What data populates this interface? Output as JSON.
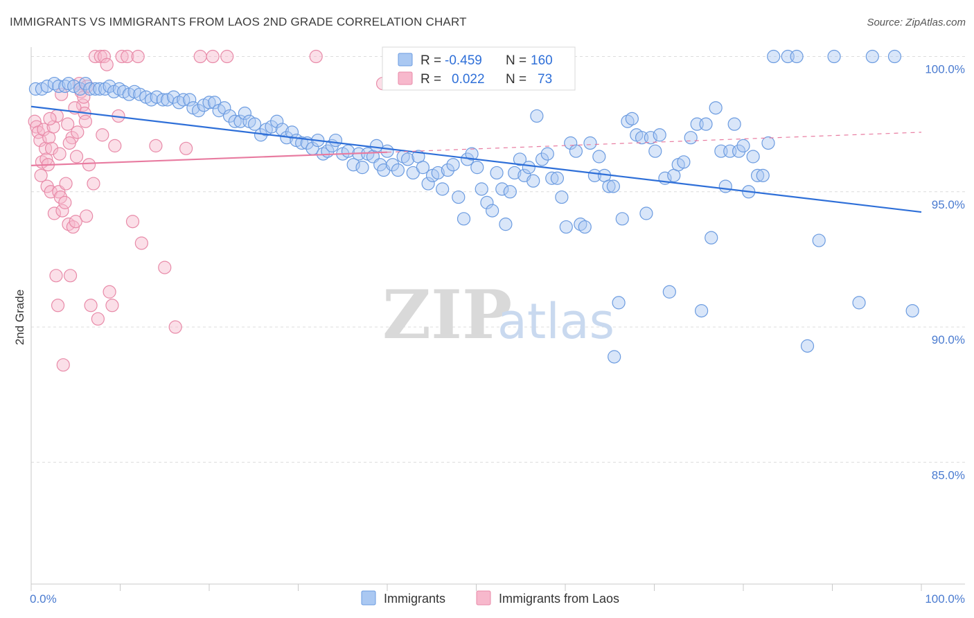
{
  "title": "IMMIGRANTS VS IMMIGRANTS FROM LAOS 2ND GRADE CORRELATION CHART",
  "source": "Source: ZipAtlas.com",
  "watermark": {
    "zip": "ZIP",
    "atlas": "atlas"
  },
  "legend": {
    "r_label": "R =",
    "n_label": "N =",
    "rows": [
      {
        "r": "-0.459",
        "n": "160",
        "color": "#aac8f2",
        "stroke": "#6b9be0"
      },
      {
        "r": "0.022",
        "n": "73",
        "color": "#f7b8cc",
        "stroke": "#e88aa8"
      }
    ]
  },
  "bottom_legend": [
    {
      "label": "Immigrants",
      "color": "#aac8f2",
      "stroke": "#6b9be0"
    },
    {
      "label": "Immigrants from Laos",
      "color": "#f7b8cc",
      "stroke": "#e88aa8"
    }
  ],
  "chart_data": {
    "type": "scatter",
    "title": "IMMIGRANTS VS IMMIGRANTS FROM LAOS 2ND GRADE CORRELATION CHART",
    "xlabel": "",
    "ylabel": "2nd Grade",
    "xlim": [
      0,
      100
    ],
    "ylim": [
      80.5,
      100.5
    ],
    "x_tick_labels": [
      "0.0%",
      "100.0%"
    ],
    "y_ticks": [
      100,
      95,
      90,
      85
    ],
    "y_tick_labels": [
      "100.0%",
      "95.0%",
      "90.0%",
      "85.0%"
    ],
    "grid": true,
    "legend_position": "top-center",
    "series": [
      {
        "name": "Immigrants",
        "color": "#6b9be0",
        "fill": "#aac8f2",
        "trend": {
          "x": [
            0,
            100
          ],
          "y": [
            98.15,
            94.25
          ],
          "color": "#2e6fd8",
          "dashed_from": null
        },
        "points": [
          [
            0.5,
            98.8
          ],
          [
            1.2,
            98.8
          ],
          [
            1.8,
            98.9
          ],
          [
            2.6,
            99.0
          ],
          [
            3.1,
            98.9
          ],
          [
            3.8,
            98.9
          ],
          [
            4.2,
            99.0
          ],
          [
            4.8,
            98.9
          ],
          [
            5.5,
            98.8
          ],
          [
            6.1,
            99.0
          ],
          [
            6.6,
            98.8
          ],
          [
            7.2,
            98.8
          ],
          [
            7.7,
            98.8
          ],
          [
            8.3,
            98.8
          ],
          [
            8.8,
            98.9
          ],
          [
            9.3,
            98.7
          ],
          [
            9.9,
            98.8
          ],
          [
            10.4,
            98.7
          ],
          [
            11.0,
            98.6
          ],
          [
            11.6,
            98.7
          ],
          [
            12.2,
            98.6
          ],
          [
            12.9,
            98.5
          ],
          [
            13.5,
            98.4
          ],
          [
            14.1,
            98.5
          ],
          [
            14.8,
            98.4
          ],
          [
            15.3,
            98.4
          ],
          [
            16.0,
            98.5
          ],
          [
            16.6,
            98.3
          ],
          [
            17.1,
            98.4
          ],
          [
            17.8,
            98.4
          ],
          [
            18.2,
            98.1
          ],
          [
            18.8,
            98.0
          ],
          [
            19.4,
            98.2
          ],
          [
            20.0,
            98.3
          ],
          [
            20.6,
            98.3
          ],
          [
            21.1,
            98.0
          ],
          [
            21.7,
            98.1
          ],
          [
            22.3,
            97.8
          ],
          [
            22.9,
            97.6
          ],
          [
            23.5,
            97.6
          ],
          [
            24.0,
            97.9
          ],
          [
            24.5,
            97.6
          ],
          [
            25.1,
            97.5
          ],
          [
            25.8,
            97.1
          ],
          [
            26.4,
            97.3
          ],
          [
            27.0,
            97.4
          ],
          [
            27.6,
            97.6
          ],
          [
            28.2,
            97.3
          ],
          [
            28.7,
            97.0
          ],
          [
            29.3,
            97.2
          ],
          [
            29.8,
            96.9
          ],
          [
            30.4,
            96.8
          ],
          [
            31.0,
            96.8
          ],
          [
            31.6,
            96.6
          ],
          [
            32.2,
            96.9
          ],
          [
            32.8,
            96.4
          ],
          [
            33.3,
            96.5
          ],
          [
            33.8,
            96.7
          ],
          [
            34.2,
            96.9
          ],
          [
            35.0,
            96.4
          ],
          [
            35.6,
            96.5
          ],
          [
            36.2,
            96.0
          ],
          [
            36.8,
            96.4
          ],
          [
            37.2,
            95.9
          ],
          [
            37.8,
            96.4
          ],
          [
            38.4,
            96.3
          ],
          [
            38.8,
            96.7
          ],
          [
            39.2,
            96.0
          ],
          [
            39.6,
            95.8
          ],
          [
            40.0,
            96.5
          ],
          [
            40.6,
            96.0
          ],
          [
            41.2,
            95.8
          ],
          [
            41.8,
            96.3
          ],
          [
            42.3,
            96.2
          ],
          [
            42.9,
            95.7
          ],
          [
            43.5,
            96.3
          ],
          [
            44.0,
            95.9
          ],
          [
            44.6,
            95.3
          ],
          [
            45.1,
            95.6
          ],
          [
            45.7,
            95.7
          ],
          [
            46.2,
            95.1
          ],
          [
            46.8,
            95.8
          ],
          [
            47.4,
            96.0
          ],
          [
            48.0,
            94.8
          ],
          [
            48.6,
            94.0
          ],
          [
            49.0,
            96.2
          ],
          [
            49.5,
            96.4
          ],
          [
            50.1,
            95.9
          ],
          [
            50.6,
            95.1
          ],
          [
            51.2,
            94.6
          ],
          [
            51.8,
            94.3
          ],
          [
            52.3,
            95.7
          ],
          [
            52.9,
            95.1
          ],
          [
            53.3,
            93.8
          ],
          [
            53.8,
            95.0
          ],
          [
            54.3,
            95.7
          ],
          [
            54.9,
            96.2
          ],
          [
            55.4,
            95.6
          ],
          [
            55.9,
            95.9
          ],
          [
            56.4,
            95.4
          ],
          [
            56.8,
            97.8
          ],
          [
            57.4,
            96.2
          ],
          [
            58.0,
            96.4
          ],
          [
            58.5,
            95.5
          ],
          [
            59.1,
            95.5
          ],
          [
            59.6,
            94.8
          ],
          [
            60.1,
            93.7
          ],
          [
            60.6,
            96.8
          ],
          [
            61.2,
            96.5
          ],
          [
            61.7,
            93.8
          ],
          [
            62.2,
            93.7
          ],
          [
            62.8,
            96.8
          ],
          [
            63.3,
            95.6
          ],
          [
            63.8,
            96.3
          ],
          [
            64.4,
            95.6
          ],
          [
            64.9,
            95.2
          ],
          [
            65.4,
            95.2
          ],
          [
            66.4,
            94.0
          ],
          [
            67.0,
            97.6
          ],
          [
            67.5,
            97.7
          ],
          [
            68.0,
            97.1
          ],
          [
            68.6,
            97.0
          ],
          [
            69.1,
            94.2
          ],
          [
            69.6,
            97.0
          ],
          [
            70.1,
            96.5
          ],
          [
            70.6,
            97.1
          ],
          [
            71.2,
            95.5
          ],
          [
            71.7,
            91.3
          ],
          [
            72.2,
            95.6
          ],
          [
            72.7,
            96.0
          ],
          [
            73.3,
            96.1
          ],
          [
            74.1,
            97.0
          ],
          [
            74.8,
            97.5
          ],
          [
            75.3,
            90.6
          ],
          [
            75.8,
            97.5
          ],
          [
            76.4,
            93.3
          ],
          [
            76.9,
            98.1
          ],
          [
            77.5,
            96.5
          ],
          [
            78.0,
            95.2
          ],
          [
            78.5,
            96.5
          ],
          [
            79.0,
            97.5
          ],
          [
            79.5,
            96.5
          ],
          [
            80.0,
            96.7
          ],
          [
            80.6,
            95.0
          ],
          [
            81.1,
            96.3
          ],
          [
            81.6,
            95.6
          ],
          [
            82.2,
            95.6
          ],
          [
            82.8,
            96.8
          ],
          [
            83.4,
            100.0
          ],
          [
            85.0,
            100.0
          ],
          [
            86.0,
            100.0
          ],
          [
            87.2,
            89.3
          ],
          [
            88.5,
            93.2
          ],
          [
            90.2,
            100.0
          ],
          [
            93.0,
            90.9
          ],
          [
            94.5,
            100.0
          ],
          [
            97.0,
            100.0
          ],
          [
            99.0,
            90.6
          ],
          [
            65.5,
            88.9
          ],
          [
            66.0,
            90.9
          ]
        ]
      },
      {
        "name": "Immigrants from Laos",
        "color": "#e88aa8",
        "fill": "#f7b8cc",
        "trend": {
          "x": [
            0,
            100
          ],
          "y": [
            95.97,
            97.2
          ],
          "color": "#e87ba0",
          "solid_until": 40
        },
        "points": [
          [
            0.4,
            97.6
          ],
          [
            0.6,
            97.4
          ],
          [
            0.8,
            97.2
          ],
          [
            1.0,
            96.9
          ],
          [
            1.2,
            96.1
          ],
          [
            1.4,
            97.3
          ],
          [
            1.6,
            96.6
          ],
          [
            1.7,
            96.2
          ],
          [
            1.8,
            95.2
          ],
          [
            2.0,
            97.0
          ],
          [
            2.2,
            95.0
          ],
          [
            2.3,
            96.6
          ],
          [
            2.5,
            97.4
          ],
          [
            2.6,
            94.2
          ],
          [
            2.8,
            91.9
          ],
          [
            3.0,
            90.8
          ],
          [
            3.1,
            95.0
          ],
          [
            3.3,
            94.8
          ],
          [
            3.5,
            94.3
          ],
          [
            3.6,
            88.6
          ],
          [
            3.8,
            94.6
          ],
          [
            3.9,
            95.3
          ],
          [
            4.1,
            97.5
          ],
          [
            4.2,
            93.8
          ],
          [
            4.4,
            91.9
          ],
          [
            4.6,
            97.0
          ],
          [
            4.7,
            93.7
          ],
          [
            5.0,
            93.9
          ],
          [
            5.2,
            97.2
          ],
          [
            5.4,
            99.0
          ],
          [
            5.6,
            98.7
          ],
          [
            5.8,
            98.2
          ],
          [
            6.0,
            97.9
          ],
          [
            6.2,
            94.1
          ],
          [
            6.5,
            96.0
          ],
          [
            6.7,
            90.8
          ],
          [
            7.0,
            95.3
          ],
          [
            7.2,
            100.0
          ],
          [
            7.5,
            90.3
          ],
          [
            7.8,
            100.0
          ],
          [
            8.2,
            100.0
          ],
          [
            8.5,
            99.7
          ],
          [
            8.8,
            91.3
          ],
          [
            9.1,
            90.8
          ],
          [
            9.4,
            96.7
          ],
          [
            10.2,
            100.0
          ],
          [
            10.8,
            100.0
          ],
          [
            11.4,
            93.9
          ],
          [
            12.4,
            93.1
          ],
          [
            14.0,
            96.7
          ],
          [
            15.0,
            92.2
          ],
          [
            16.2,
            90.0
          ],
          [
            17.4,
            96.6
          ],
          [
            19.0,
            100.0
          ],
          [
            20.4,
            100.0
          ],
          [
            32.0,
            100.0
          ],
          [
            39.5,
            99.0
          ],
          [
            5.9,
            98.5
          ],
          [
            6.3,
            98.9
          ],
          [
            4.9,
            98.1
          ],
          [
            3.4,
            98.6
          ],
          [
            2.9,
            97.8
          ],
          [
            2.1,
            97.7
          ],
          [
            1.1,
            95.6
          ],
          [
            1.9,
            96.0
          ],
          [
            3.2,
            96.4
          ],
          [
            4.3,
            96.8
          ],
          [
            5.1,
            96.3
          ],
          [
            6.1,
            97.6
          ],
          [
            8.0,
            97.1
          ],
          [
            9.8,
            97.8
          ],
          [
            12.0,
            100.0
          ],
          [
            22.0,
            100.0
          ]
        ]
      }
    ]
  }
}
